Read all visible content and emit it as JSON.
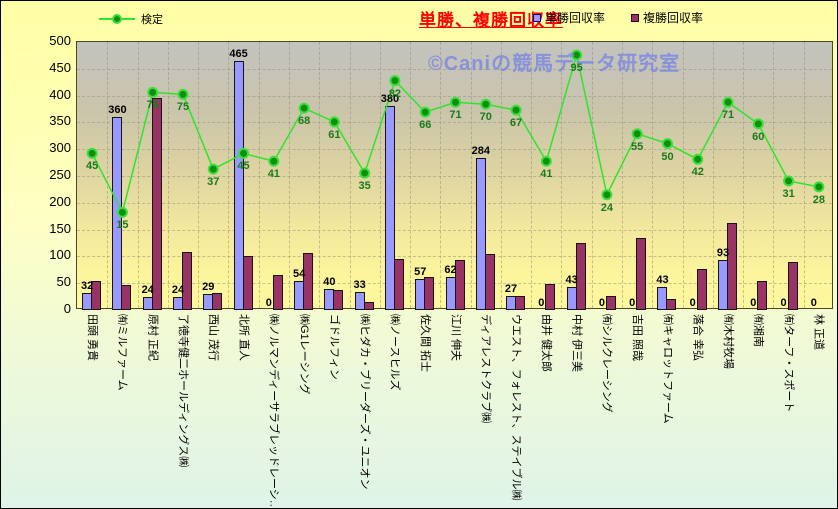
{
  "header": {
    "title": "単勝、複勝回収率",
    "watermark": "©Caniの競馬データ研究室"
  },
  "legend": {
    "line_label": "検定",
    "bar1_label": "単勝回収率",
    "bar2_label": "複勝回収率"
  },
  "colors": {
    "title": "#ff0000",
    "tansho_bar": "#9999ff",
    "fukusho_bar": "#993366",
    "kentei_line": "#2ee52e",
    "kentei_marker": "#0c910c",
    "kentei_label": "#1a7a1a",
    "watermark": "#7d8ae1"
  },
  "chart_data": {
    "type": "bar",
    "title": "単勝、複勝回収率",
    "categories": [
      "田頭 勇貴",
      "㈲ミルファーム",
      "原村 正紀",
      "了徳寺健二ホールディングス㈱",
      "西山 茂行",
      "北所 直人",
      "㈱ノルマンディーサラブレッドレーシ…",
      "㈱G1レーシング",
      "ゴドルフィン",
      "㈱ヒダカ・ブリーダーズ・ユニオン",
      "㈱ノースヒルズ",
      "佐久間 拓士",
      "江川 伸夫",
      "ディアレストクラブ㈱",
      "ウエスト、フォレスト、ステイブル㈱",
      "由井 健太郎",
      "中村 伊三美",
      "㈲シルクレーシング",
      "吉田 照哉",
      "㈲キャロットファーム",
      "落合 幸弘",
      "㈲木村牧場",
      "㈲湘南",
      "㈲ターフ・スポート",
      "林 正道"
    ],
    "series": [
      {
        "name": "単勝回収率",
        "type": "bar",
        "color": "#9999ff",
        "data_labels": true,
        "values": [
          32,
          360,
          24,
          24,
          29,
          465,
          0,
          54,
          40,
          33,
          380,
          57,
          62,
          284,
          27,
          0,
          43,
          0,
          0,
          43,
          0,
          93,
          0,
          0,
          0
        ]
      },
      {
        "name": "複勝回収率",
        "type": "bar",
        "color": "#993366",
        "data_labels": false,
        "values": [
          54,
          47,
          395,
          109,
          32,
          100,
          65,
          106,
          38,
          14,
          95,
          62,
          93,
          105,
          27,
          48,
          125,
          27,
          134,
          21,
          77,
          163,
          54,
          90,
          0
        ]
      },
      {
        "name": "検定",
        "type": "line",
        "color": "#2ee52e",
        "data_labels": true,
        "values": [
          45,
          15,
          76,
          75,
          37,
          45,
          41,
          68,
          61,
          35,
          82,
          66,
          71,
          70,
          67,
          41,
          95,
          24,
          55,
          50,
          42,
          71,
          60,
          31,
          28
        ],
        "secondary_axis_plot_mapping": {
          "scale": 3.67,
          "offset": 127
        }
      }
    ],
    "ylim": [
      0,
      500
    ],
    "ytick_step": 50,
    "grid": true,
    "legend_position": "top"
  }
}
